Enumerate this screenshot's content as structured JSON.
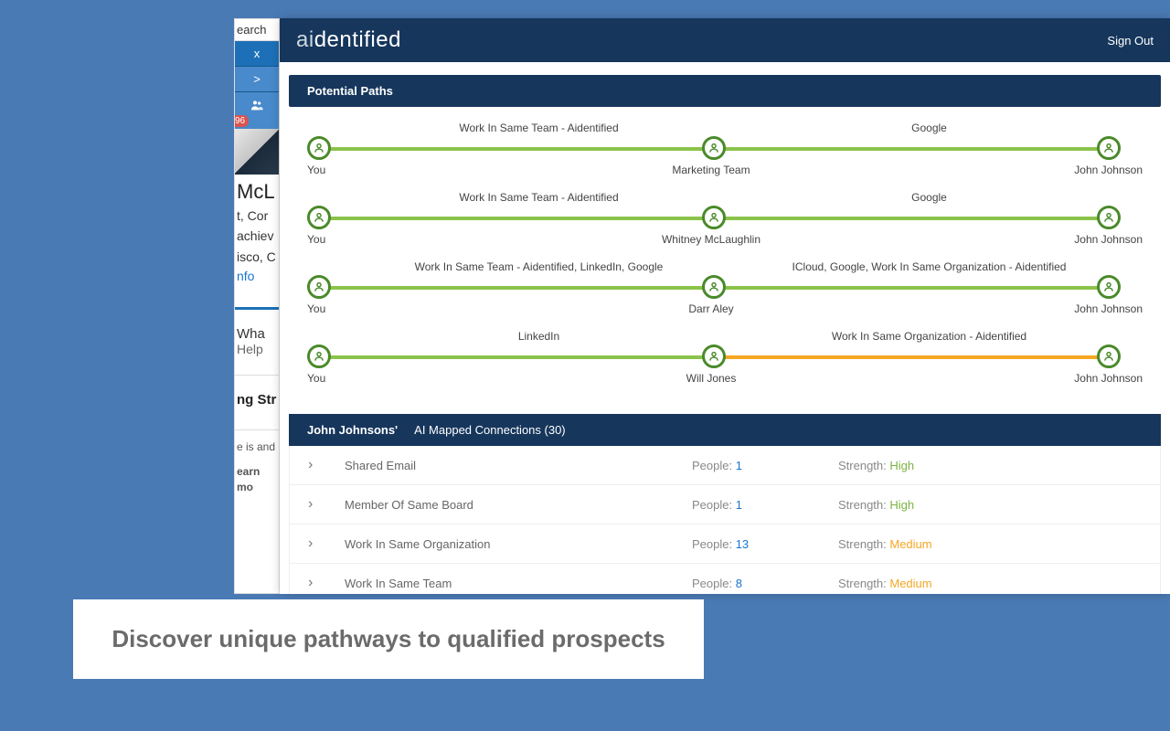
{
  "colors": {
    "page_bg": "#4a7ab4",
    "header_bg": "#16365c",
    "path_green": "#8bc34a",
    "path_orange": "#f6a623",
    "node_border": "#4a8a2a",
    "link_blue": "#1976d2",
    "badge_red": "#d9534f"
  },
  "left_card": {
    "search_fragment": "earch",
    "tab_x": "x",
    "tab_arrow": ">",
    "badge_count": "96",
    "name_fragment": "McL",
    "line1": "t, Cor",
    "line2": "achiev",
    "line3": "isco, C",
    "link_fragment": "nfo",
    "wha": "Wha",
    "help": "Help",
    "str_label": "ng Str",
    "tiny1": "e is and",
    "tiny2": "earn mo"
  },
  "header": {
    "logo_ai": "ai",
    "logo_rest": "dentified",
    "sign_out": "Sign Out"
  },
  "section_title": "Potential Paths",
  "paths": [
    {
      "left_label": "Work In Same Team - Aidentified",
      "right_label": "Google",
      "start_name": "You",
      "mid_name": "Marketing Team",
      "end_name": "John Johnson",
      "seg1_color": "green",
      "seg2_color": "green"
    },
    {
      "left_label": "Work In Same Team - Aidentified",
      "right_label": "Google",
      "start_name": "You",
      "mid_name": "Whitney McLaughlin",
      "end_name": "John Johnson",
      "seg1_color": "green",
      "seg2_color": "green"
    },
    {
      "left_label": "Work In Same Team - Aidentified, LinkedIn, Google",
      "right_label": "ICloud, Google, Work In Same Organization - Aidentified",
      "start_name": "You",
      "mid_name": "Darr Aley",
      "end_name": "John Johnson",
      "seg1_color": "green",
      "seg2_color": "green"
    },
    {
      "left_label": "LinkedIn",
      "right_label": "Work In Same Organization - Aidentified",
      "start_name": "You",
      "mid_name": "Will Jones",
      "end_name": "John Johnson",
      "seg1_color": "green",
      "seg2_color": "orange"
    }
  ],
  "connections_header": {
    "name": "John Johnsons'",
    "label": "AI Mapped Connections (30)"
  },
  "connections": [
    {
      "label": "Shared Email",
      "people": "1",
      "strength": "High",
      "strength_class": "high"
    },
    {
      "label": "Member Of Same Board",
      "people": "1",
      "strength": "High",
      "strength_class": "high"
    },
    {
      "label": "Work In Same Organization",
      "people": "13",
      "strength": "Medium",
      "strength_class": "medium"
    },
    {
      "label": "Work In Same Team",
      "people": "8",
      "strength": "Medium",
      "strength_class": "medium"
    }
  ],
  "labels": {
    "people_prefix": "People: ",
    "strength_prefix": "Strength: "
  },
  "caption": "Discover unique pathways to qualified prospects"
}
